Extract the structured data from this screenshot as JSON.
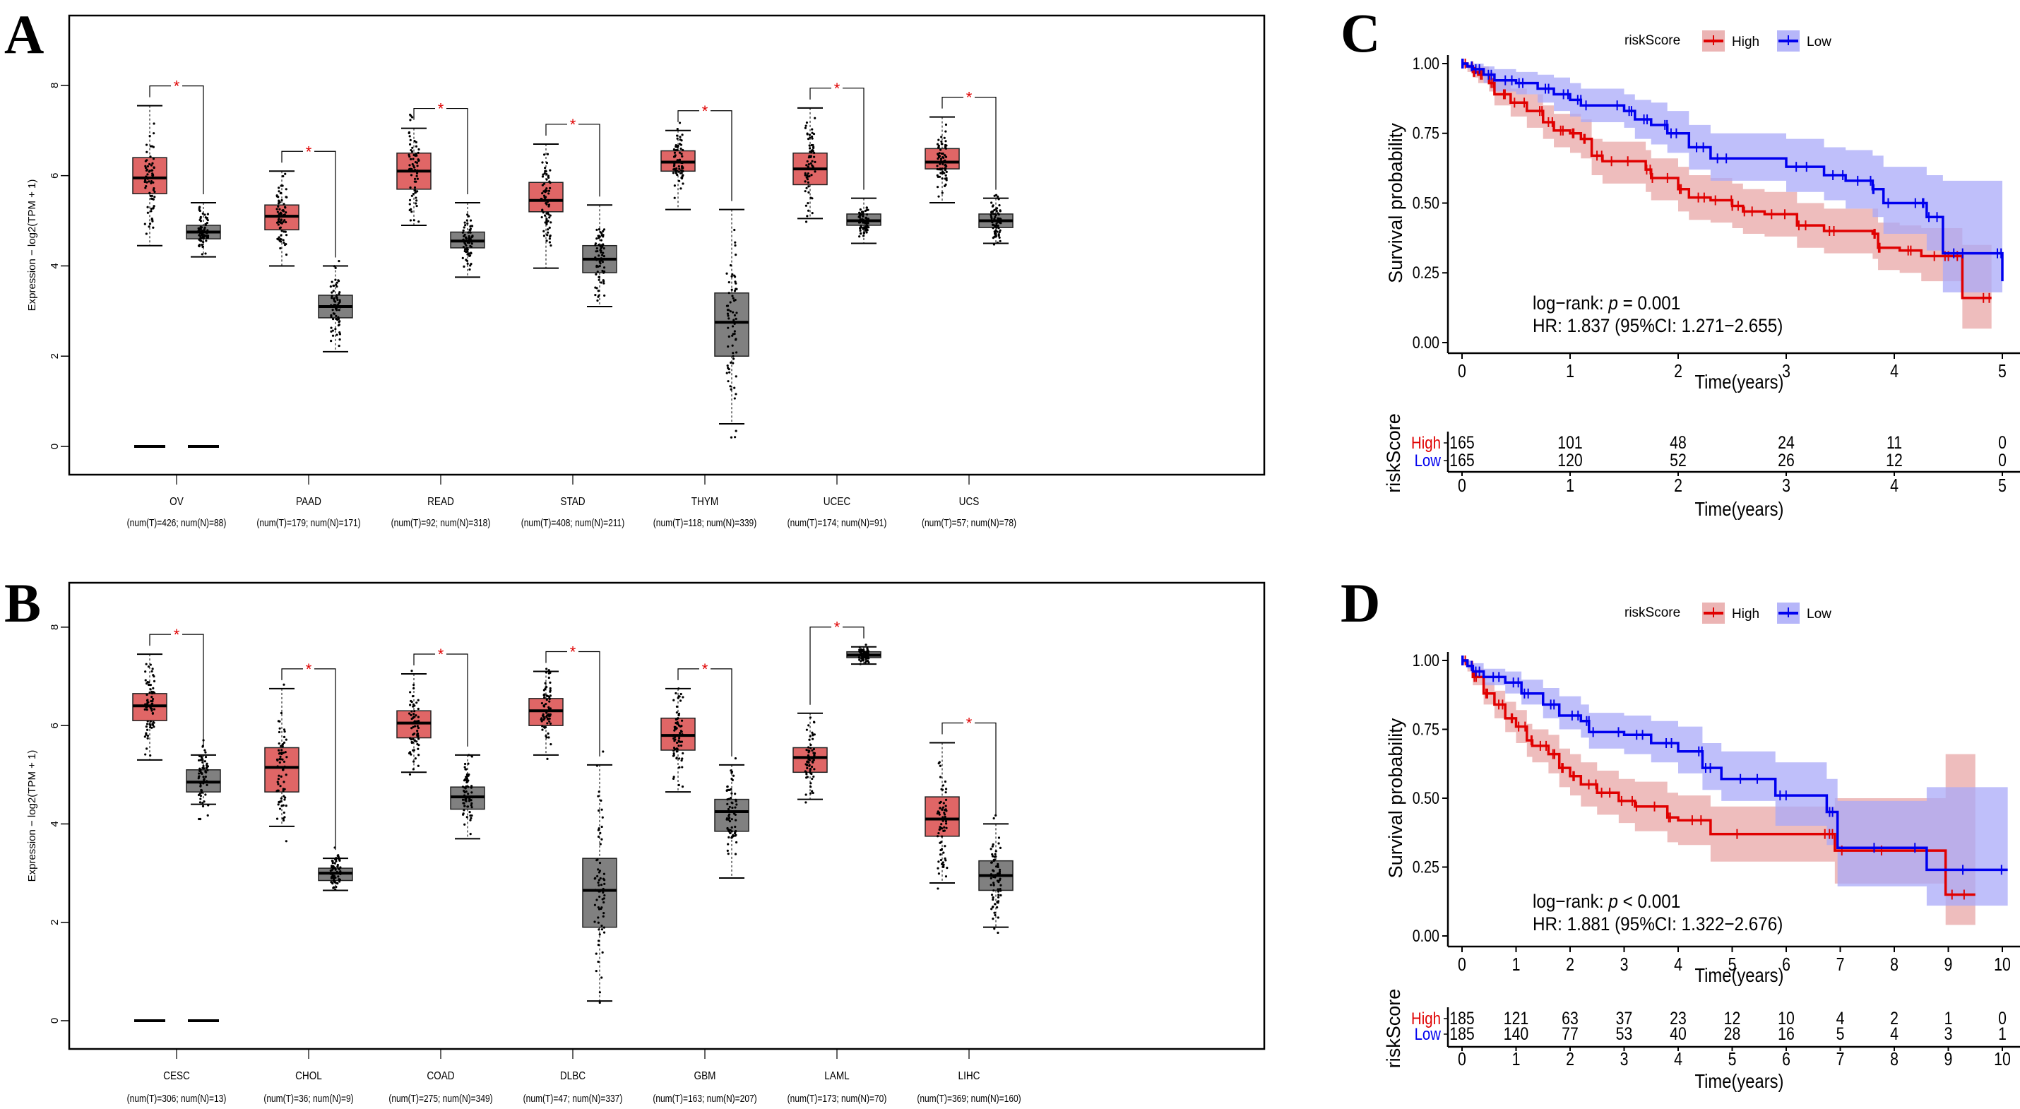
{
  "panels": {
    "A": "A",
    "B": "B",
    "C": "C",
    "D": "D"
  },
  "colors": {
    "tumor_box": "#E06666",
    "normal_box": "#808080",
    "significance": "#E00000",
    "high": "#E00000",
    "low": "#0000EE",
    "high_band": "#E8A7A7",
    "low_band": "#A9A9F8"
  },
  "chart_data": [
    {
      "id": "A",
      "type": "box",
      "ylabel": "Expression − log2(TPM + 1)",
      "ylim": [
        0,
        9
      ],
      "yticks": [
        0,
        2,
        4,
        6,
        8
      ],
      "significance_marker": "*",
      "categories": [
        "OV",
        "PAAD",
        "READ",
        "STAD",
        "THYM",
        "UCEC",
        "UCS"
      ],
      "sublabels": [
        "(num(T)=426; num(N)=88)",
        "(num(T)=179; num(N)=171)",
        "(num(T)=92; num(N)=318)",
        "(num(T)=408; num(N)=211)",
        "(num(T)=118; num(N)=339)",
        "(num(T)=174; num(N)=91)",
        "(num(T)=57; num(N)=78)"
      ],
      "series": [
        {
          "name": "Tumor",
          "boxes": [
            {
              "wlo": 4.45,
              "q1": 5.6,
              "med": 5.95,
              "q3": 6.4,
              "whi": 7.55,
              "zero_bar": true
            },
            {
              "wlo": 4.0,
              "q1": 4.8,
              "med": 5.1,
              "q3": 5.35,
              "whi": 6.1
            },
            {
              "wlo": 4.9,
              "q1": 5.7,
              "med": 6.1,
              "q3": 6.5,
              "whi": 7.05
            },
            {
              "wlo": 3.95,
              "q1": 5.2,
              "med": 5.45,
              "q3": 5.85,
              "whi": 6.7
            },
            {
              "wlo": 5.25,
              "q1": 6.1,
              "med": 6.3,
              "q3": 6.55,
              "whi": 7.0
            },
            {
              "wlo": 5.05,
              "q1": 5.8,
              "med": 6.15,
              "q3": 6.5,
              "whi": 7.5
            },
            {
              "wlo": 5.4,
              "q1": 6.15,
              "med": 6.3,
              "q3": 6.6,
              "whi": 7.3
            }
          ]
        },
        {
          "name": "Normal",
          "boxes": [
            {
              "wlo": 4.2,
              "q1": 4.6,
              "med": 4.75,
              "q3": 4.9,
              "whi": 5.4,
              "zero_bar": true
            },
            {
              "wlo": 2.1,
              "q1": 2.85,
              "med": 3.1,
              "q3": 3.35,
              "whi": 4.0
            },
            {
              "wlo": 3.75,
              "q1": 4.4,
              "med": 4.55,
              "q3": 4.75,
              "whi": 5.4
            },
            {
              "wlo": 3.1,
              "q1": 3.85,
              "med": 4.15,
              "q3": 4.45,
              "whi": 5.35
            },
            {
              "wlo": 0.5,
              "q1": 2.0,
              "med": 2.75,
              "q3": 3.4,
              "whi": 5.25
            },
            {
              "wlo": 4.5,
              "q1": 4.9,
              "med": 5.0,
              "q3": 5.15,
              "whi": 5.5
            },
            {
              "wlo": 4.5,
              "q1": 4.85,
              "med": 5.0,
              "q3": 5.15,
              "whi": 5.5
            }
          ]
        }
      ]
    },
    {
      "id": "B",
      "type": "box",
      "ylabel": "Expression − log2(TPM + 1)",
      "ylim": [
        0,
        8.4
      ],
      "yticks": [
        0,
        2,
        4,
        6,
        8
      ],
      "significance_marker": "*",
      "categories": [
        "CESC",
        "CHOL",
        "COAD",
        "DLBC",
        "GBM",
        "LAML",
        "LIHC"
      ],
      "sublabels": [
        "(num(T)=306; num(N)=13)",
        "(num(T)=36; num(N)=9)",
        "(num(T)=275; num(N)=349)",
        "(num(T)=47; num(N)=337)",
        "(num(T)=163; num(N)=207)",
        "(num(T)=173; num(N)=70)",
        "(num(T)=369; num(N)=160)"
      ],
      "series": [
        {
          "name": "Tumor",
          "boxes": [
            {
              "wlo": 5.3,
              "q1": 6.1,
              "med": 6.4,
              "q3": 6.65,
              "whi": 7.45,
              "zero_bar": true
            },
            {
              "wlo": 3.95,
              "q1": 4.65,
              "med": 5.15,
              "q3": 5.55,
              "whi": 6.75
            },
            {
              "wlo": 5.05,
              "q1": 5.75,
              "med": 6.05,
              "q3": 6.3,
              "whi": 7.05
            },
            {
              "wlo": 5.4,
              "q1": 6.0,
              "med": 6.3,
              "q3": 6.55,
              "whi": 7.1
            },
            {
              "wlo": 4.65,
              "q1": 5.5,
              "med": 5.8,
              "q3": 6.15,
              "whi": 6.75
            },
            {
              "wlo": 4.5,
              "q1": 5.05,
              "med": 5.35,
              "q3": 5.55,
              "whi": 6.25
            },
            {
              "wlo": 2.8,
              "q1": 3.75,
              "med": 4.1,
              "q3": 4.55,
              "whi": 5.65
            }
          ]
        },
        {
          "name": "Normal",
          "boxes": [
            {
              "wlo": 4.4,
              "q1": 4.65,
              "med": 4.85,
              "q3": 5.1,
              "whi": 5.4,
              "zero_bar": true
            },
            {
              "wlo": 2.65,
              "q1": 2.85,
              "med": 3.0,
              "q3": 3.1,
              "whi": 3.3
            },
            {
              "wlo": 3.7,
              "q1": 4.3,
              "med": 4.55,
              "q3": 4.75,
              "whi": 5.4
            },
            {
              "wlo": 0.4,
              "q1": 1.9,
              "med": 2.65,
              "q3": 3.3,
              "whi": 5.2
            },
            {
              "wlo": 2.9,
              "q1": 3.85,
              "med": 4.25,
              "q3": 4.5,
              "whi": 5.2
            },
            {
              "wlo": 7.25,
              "q1": 7.38,
              "med": 7.43,
              "q3": 7.5,
              "whi": 7.6
            },
            {
              "wlo": 1.9,
              "q1": 2.65,
              "med": 2.95,
              "q3": 3.25,
              "whi": 4.0
            }
          ]
        }
      ]
    },
    {
      "id": "C",
      "type": "line",
      "subtype": "kaplan-meier",
      "legend_title": "riskScore",
      "legend": [
        "High",
        "Low"
      ],
      "legend_position": "top",
      "ylabel": "Survival probability",
      "xlabel": "Time(years)",
      "xlim": [
        0,
        5
      ],
      "ylim": [
        0,
        1
      ],
      "xticks": [
        0,
        1,
        2,
        3,
        4,
        5
      ],
      "yticks": [
        "0.00",
        "0.25",
        "0.50",
        "0.75",
        "1.00"
      ],
      "annotation": [
        "log−rank: p = 0.001",
        "HR: 1.837 (95%CI: 1.271−2.655)"
      ],
      "annotation_parts": {
        "prefix": "log−rank: ",
        "p": "p",
        "rest": " = 0.001",
        "hr": "HR: 1.837 (95%CI: 1.271−2.655)"
      },
      "series": [
        {
          "name": "High",
          "x": [
            0,
            0.05,
            0.1,
            0.15,
            0.25,
            0.3,
            0.45,
            0.6,
            0.75,
            0.85,
            1.0,
            1.1,
            1.2,
            1.3,
            1.7,
            1.75,
            2.0,
            2.1,
            2.3,
            2.5,
            2.6,
            2.8,
            3.1,
            3.35,
            3.8,
            3.85,
            4.05,
            4.25,
            4.5,
            4.63,
            4.9
          ],
          "y": [
            1.0,
            0.99,
            0.97,
            0.96,
            0.93,
            0.89,
            0.86,
            0.83,
            0.79,
            0.76,
            0.75,
            0.73,
            0.67,
            0.65,
            0.62,
            0.59,
            0.55,
            0.52,
            0.51,
            0.49,
            0.47,
            0.46,
            0.42,
            0.4,
            0.39,
            0.34,
            0.33,
            0.31,
            0.31,
            0.16,
            0.16
          ],
          "lower": [
            0.99,
            0.97,
            0.95,
            0.93,
            0.9,
            0.85,
            0.81,
            0.77,
            0.73,
            0.7,
            0.68,
            0.66,
            0.6,
            0.57,
            0.54,
            0.51,
            0.47,
            0.44,
            0.43,
            0.41,
            0.39,
            0.38,
            0.34,
            0.32,
            0.3,
            0.26,
            0.25,
            0.22,
            0.22,
            0.05,
            0.05
          ],
          "upper": [
            1.0,
            1.0,
            0.99,
            0.99,
            0.97,
            0.94,
            0.91,
            0.89,
            0.85,
            0.82,
            0.82,
            0.8,
            0.73,
            0.72,
            0.69,
            0.66,
            0.63,
            0.6,
            0.59,
            0.57,
            0.55,
            0.54,
            0.5,
            0.48,
            0.48,
            0.43,
            0.42,
            0.41,
            0.41,
            0.35,
            0.35
          ]
        },
        {
          "name": "Low",
          "x": [
            0,
            0.05,
            0.1,
            0.2,
            0.3,
            0.5,
            0.7,
            0.85,
            1.0,
            1.1,
            1.5,
            1.6,
            1.75,
            1.9,
            2.1,
            2.3,
            3.0,
            3.35,
            3.55,
            3.8,
            3.9,
            4.25,
            4.3,
            4.45,
            4.9,
            5.0
          ],
          "y": [
            1.0,
            0.99,
            0.98,
            0.96,
            0.94,
            0.93,
            0.91,
            0.89,
            0.87,
            0.85,
            0.83,
            0.8,
            0.78,
            0.75,
            0.7,
            0.66,
            0.63,
            0.6,
            0.58,
            0.55,
            0.5,
            0.5,
            0.45,
            0.32,
            0.32,
            0.22
          ],
          "lower": [
            0.99,
            0.98,
            0.96,
            0.93,
            0.9,
            0.89,
            0.86,
            0.83,
            0.81,
            0.79,
            0.77,
            0.73,
            0.71,
            0.68,
            0.62,
            0.58,
            0.54,
            0.51,
            0.48,
            0.45,
            0.39,
            0.39,
            0.33,
            0.18,
            0.18,
            0.08
          ],
          "upper": [
            1.0,
            1.0,
            1.0,
            0.99,
            0.98,
            0.97,
            0.96,
            0.95,
            0.93,
            0.91,
            0.89,
            0.87,
            0.86,
            0.83,
            0.78,
            0.75,
            0.73,
            0.7,
            0.69,
            0.67,
            0.63,
            0.63,
            0.6,
            0.58,
            0.58,
            0.58
          ]
        }
      ],
      "risk_table": {
        "title": "riskScore",
        "rows": [
          {
            "name": "High",
            "counts": [
              165,
              101,
              48,
              24,
              11,
              0
            ]
          },
          {
            "name": "Low",
            "counts": [
              165,
              120,
              52,
              26,
              12,
              0
            ]
          }
        ],
        "xlabel": "Time(years)"
      }
    },
    {
      "id": "D",
      "type": "line",
      "subtype": "kaplan-meier",
      "legend_title": "riskScore",
      "legend": [
        "High",
        "Low"
      ],
      "legend_position": "top",
      "ylabel": "Survival probability",
      "xlabel": "Time(years)",
      "xlim": [
        0,
        10
      ],
      "ylim": [
        0,
        1
      ],
      "xticks": [
        0,
        1,
        2,
        3,
        4,
        5,
        6,
        7,
        8,
        9,
        10
      ],
      "yticks": [
        "0.00",
        "0.25",
        "0.50",
        "0.75",
        "1.00"
      ],
      "annotation": [
        "log−rank: p < 0.001",
        "HR: 1.881 (95%CI: 1.322−2.676)"
      ],
      "annotation_parts": {
        "prefix": "log−rank: ",
        "p": "p",
        "rest": " < 0.001",
        "hr": "HR: 1.881 (95%CI: 1.322−2.676)"
      },
      "series": [
        {
          "name": "High",
          "x": [
            0,
            0.1,
            0.2,
            0.4,
            0.6,
            0.8,
            1.0,
            1.2,
            1.3,
            1.6,
            1.8,
            2.0,
            2.2,
            2.5,
            2.9,
            3.2,
            3.8,
            4.0,
            4.6,
            6.8,
            6.9,
            8.95,
            9.5
          ],
          "y": [
            1.0,
            0.98,
            0.94,
            0.88,
            0.84,
            0.79,
            0.76,
            0.71,
            0.69,
            0.66,
            0.61,
            0.58,
            0.55,
            0.52,
            0.49,
            0.47,
            0.43,
            0.42,
            0.37,
            0.37,
            0.31,
            0.15,
            0.15
          ],
          "lower": [
            0.99,
            0.96,
            0.91,
            0.84,
            0.79,
            0.74,
            0.7,
            0.65,
            0.63,
            0.59,
            0.54,
            0.51,
            0.47,
            0.44,
            0.41,
            0.38,
            0.34,
            0.33,
            0.27,
            0.27,
            0.19,
            0.04,
            0.04
          ],
          "upper": [
            1.0,
            1.0,
            0.97,
            0.92,
            0.89,
            0.85,
            0.82,
            0.77,
            0.75,
            0.73,
            0.68,
            0.66,
            0.63,
            0.6,
            0.57,
            0.56,
            0.52,
            0.51,
            0.47,
            0.47,
            0.5,
            0.66,
            0.66
          ]
        },
        {
          "name": "Low",
          "x": [
            0,
            0.1,
            0.2,
            0.4,
            0.8,
            1.1,
            1.5,
            1.8,
            2.2,
            2.35,
            3.0,
            3.5,
            4.0,
            4.45,
            4.8,
            5.8,
            6.75,
            6.95,
            8.6,
            10.1
          ],
          "y": [
            1.0,
            0.98,
            0.96,
            0.94,
            0.92,
            0.88,
            0.84,
            0.8,
            0.78,
            0.74,
            0.73,
            0.7,
            0.67,
            0.61,
            0.57,
            0.51,
            0.45,
            0.32,
            0.24,
            0.24
          ],
          "lower": [
            0.99,
            0.97,
            0.94,
            0.91,
            0.88,
            0.84,
            0.79,
            0.75,
            0.72,
            0.68,
            0.66,
            0.63,
            0.59,
            0.53,
            0.49,
            0.4,
            0.33,
            0.18,
            0.11,
            0.11
          ],
          "upper": [
            1.0,
            1.0,
            0.99,
            0.97,
            0.96,
            0.93,
            0.9,
            0.87,
            0.84,
            0.81,
            0.8,
            0.78,
            0.76,
            0.7,
            0.67,
            0.63,
            0.57,
            0.49,
            0.54,
            0.54
          ]
        }
      ],
      "risk_table": {
        "title": "riskScore",
        "rows": [
          {
            "name": "High",
            "counts": [
              185,
              121,
              63,
              37,
              23,
              12,
              10,
              4,
              2,
              1,
              0
            ]
          },
          {
            "name": "Low",
            "counts": [
              185,
              140,
              77,
              53,
              40,
              28,
              16,
              5,
              4,
              3,
              1
            ]
          }
        ],
        "xlabel": "Time(years)"
      }
    }
  ]
}
